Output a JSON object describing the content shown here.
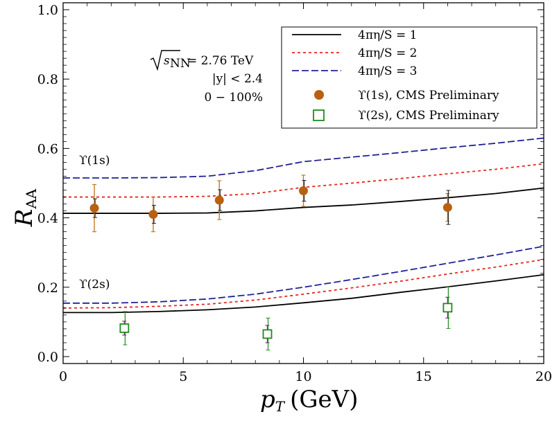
{
  "chart_data": {
    "type": "scatter",
    "xlabel": "p_T (GeV)",
    "xlabel_main": "p",
    "xlabel_sub": "T",
    "xlabel_unit": "(GeV)",
    "ylabel": "R_AA",
    "ylabel_main": "R",
    "ylabel_sub": "AA",
    "xlim": [
      0,
      20
    ],
    "ylim": [
      -0.02,
      1.02
    ],
    "xticks": [
      0,
      5,
      10,
      15,
      20
    ],
    "yticks": [
      0.0,
      0.2,
      0.4,
      0.6,
      0.8,
      1.0
    ],
    "xtick_labels": [
      "0",
      "5",
      "10",
      "15",
      "20"
    ],
    "ytick_labels": [
      "0.0",
      "0.2",
      "0.4",
      "0.6",
      "0.8",
      "1.0"
    ],
    "grid": false,
    "legend_position": "top-right",
    "annotations": {
      "sqrt_s_label": "s",
      "sqrt_s_sub": "NN",
      "sqrt_s_value": "= 2.76 TeV",
      "rapidity": "|y| < 2.4",
      "centrality": "0 − 100%",
      "upsilon1s_label": "ϒ(1s)",
      "upsilon2s_label": "ϒ(2s)"
    },
    "curves": [
      {
        "name": "4πη/S = 1",
        "color": "#000000",
        "dash": "solid",
        "upsilon1s": [
          [
            0,
            0.413
          ],
          [
            2,
            0.413
          ],
          [
            4,
            0.413
          ],
          [
            6,
            0.414
          ],
          [
            8,
            0.42
          ],
          [
            10,
            0.43
          ],
          [
            12,
            0.437
          ],
          [
            14,
            0.447
          ],
          [
            16,
            0.458
          ],
          [
            18,
            0.47
          ],
          [
            20,
            0.486
          ]
        ],
        "upsilon2s": [
          [
            0,
            0.127
          ],
          [
            2,
            0.127
          ],
          [
            4,
            0.13
          ],
          [
            6,
            0.135
          ],
          [
            8,
            0.143
          ],
          [
            10,
            0.155
          ],
          [
            12,
            0.168
          ],
          [
            14,
            0.185
          ],
          [
            16,
            0.201
          ],
          [
            18,
            0.218
          ],
          [
            20,
            0.236
          ]
        ]
      },
      {
        "name": "4πη/S = 2",
        "color": "#e8231f",
        "dash": "short",
        "upsilon1s": [
          [
            0,
            0.46
          ],
          [
            2,
            0.46
          ],
          [
            4,
            0.46
          ],
          [
            6,
            0.462
          ],
          [
            8,
            0.47
          ],
          [
            10,
            0.488
          ],
          [
            12,
            0.5
          ],
          [
            14,
            0.513
          ],
          [
            16,
            0.527
          ],
          [
            18,
            0.54
          ],
          [
            20,
            0.556
          ]
        ],
        "upsilon2s": [
          [
            0,
            0.14
          ],
          [
            2,
            0.141
          ],
          [
            4,
            0.145
          ],
          [
            6,
            0.151
          ],
          [
            8,
            0.163
          ],
          [
            10,
            0.18
          ],
          [
            12,
            0.198
          ],
          [
            14,
            0.217
          ],
          [
            16,
            0.238
          ],
          [
            18,
            0.258
          ],
          [
            20,
            0.28
          ]
        ]
      },
      {
        "name": "4πη/S = 3",
        "color": "#1f2096",
        "dash": "long",
        "upsilon1s": [
          [
            0,
            0.515
          ],
          [
            2,
            0.515
          ],
          [
            4,
            0.516
          ],
          [
            6,
            0.52
          ],
          [
            8,
            0.536
          ],
          [
            10,
            0.562
          ],
          [
            12,
            0.575
          ],
          [
            14,
            0.588
          ],
          [
            16,
            0.602
          ],
          [
            18,
            0.615
          ],
          [
            20,
            0.63
          ]
        ],
        "upsilon2s": [
          [
            0,
            0.154
          ],
          [
            2,
            0.154
          ],
          [
            4,
            0.158
          ],
          [
            6,
            0.166
          ],
          [
            8,
            0.18
          ],
          [
            10,
            0.2
          ],
          [
            12,
            0.222
          ],
          [
            14,
            0.245
          ],
          [
            16,
            0.269
          ],
          [
            18,
            0.293
          ],
          [
            20,
            0.318
          ]
        ]
      }
    ],
    "series": [
      {
        "name": "ϒ(1s), CMS Preliminary",
        "marker": "filled-circle",
        "color": "#b8610f",
        "points": [
          {
            "x": 1.3,
            "y": 0.428,
            "stat": 0.027,
            "syst": 0.068
          },
          {
            "x": 3.75,
            "y": 0.41,
            "stat": 0.026,
            "syst": 0.05
          },
          {
            "x": 6.5,
            "y": 0.451,
            "stat": 0.03,
            "syst": 0.056
          },
          {
            "x": 10.0,
            "y": 0.478,
            "stat": 0.03,
            "syst": 0.045
          },
          {
            "x": 16.0,
            "y": 0.43,
            "stat": 0.049,
            "syst": 0.04
          }
        ]
      },
      {
        "name": "ϒ(2s), CMS Preliminary",
        "marker": "open-square",
        "color": "#1e8a1e",
        "points": [
          {
            "x": 2.55,
            "y": 0.082,
            "stat": 0.048,
            "syst": 0.02
          },
          {
            "x": 8.5,
            "y": 0.065,
            "stat": 0.046,
            "syst": 0.025
          },
          {
            "x": 16.0,
            "y": 0.141,
            "stat": 0.06,
            "syst": 0.03
          }
        ]
      }
    ]
  }
}
